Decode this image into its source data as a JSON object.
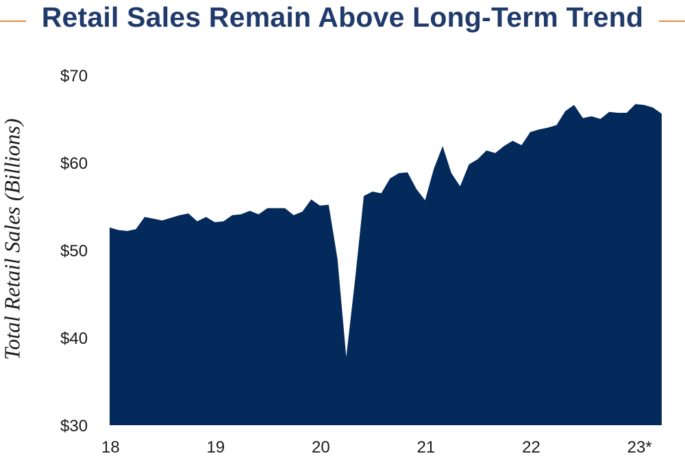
{
  "chart_data": {
    "type": "area",
    "title": "Retail Sales Remain Above Long-Term Trend",
    "ylabel": "Total Retail Sales (Billions)",
    "xlabel": "",
    "ylim": [
      30,
      70
    ],
    "y_ticks": [
      {
        "value": 70,
        "label": "$70"
      },
      {
        "value": 60,
        "label": "$60"
      },
      {
        "value": 50,
        "label": "$50"
      },
      {
        "value": 40,
        "label": "$40"
      },
      {
        "value": 30,
        "label": "$30"
      }
    ],
    "x_ticks": [
      {
        "value": 2018.0,
        "label": "18"
      },
      {
        "value": 2019.0,
        "label": "19"
      },
      {
        "value": 2020.0,
        "label": "20"
      },
      {
        "value": 2021.0,
        "label": "21"
      },
      {
        "value": 2022.0,
        "label": "22"
      },
      {
        "value": 2023.0,
        "label": "23*"
      }
    ],
    "xlim": [
      2018.0,
      2023.25
    ],
    "colors": {
      "fill": "#042a5c",
      "accent_rule": "#e8873a",
      "title": "#1f3a6b"
    },
    "series": [
      {
        "x": [
          2018.0,
          2018.083,
          2018.167,
          2018.25,
          2018.333,
          2018.417,
          2018.5,
          2018.583,
          2018.667,
          2018.75,
          2018.833,
          2018.917,
          2019.0,
          2019.083,
          2019.167,
          2019.25,
          2019.333,
          2019.417,
          2019.5,
          2019.583,
          2019.667,
          2019.75,
          2019.833,
          2019.917,
          2020.0,
          2020.083,
          2020.167,
          2020.25,
          2020.333,
          2020.417,
          2020.5,
          2020.583,
          2020.667,
          2020.75,
          2020.833,
          2020.917,
          2021.0,
          2021.083,
          2021.167,
          2021.25,
          2021.333,
          2021.417,
          2021.5,
          2021.583,
          2021.667,
          2021.75,
          2021.833,
          2021.917,
          2022.0,
          2022.083,
          2022.167,
          2022.25,
          2022.333,
          2022.417,
          2022.5,
          2022.583,
          2022.667,
          2022.75,
          2022.833,
          2022.917,
          2023.0,
          2023.083,
          2023.167,
          2023.25
        ],
        "values": [
          52.6,
          52.3,
          52.2,
          52.4,
          53.8,
          53.6,
          53.4,
          53.7,
          54.0,
          54.2,
          53.3,
          53.8,
          53.2,
          53.3,
          54.0,
          54.1,
          54.5,
          54.1,
          54.8,
          54.8,
          54.8,
          54.0,
          54.4,
          55.8,
          55.1,
          55.2,
          49.0,
          37.8,
          46.5,
          56.2,
          56.7,
          56.5,
          58.2,
          58.8,
          58.9,
          57.0,
          55.7,
          59.3,
          61.9,
          58.8,
          57.3,
          59.8,
          60.4,
          61.4,
          61.1,
          61.9,
          62.5,
          62.0,
          63.5,
          63.8,
          64.0,
          64.3,
          65.9,
          66.6,
          65.1,
          65.3,
          65.0,
          65.8,
          65.7,
          65.7,
          66.7,
          66.6,
          66.3,
          65.6
        ]
      }
    ]
  }
}
